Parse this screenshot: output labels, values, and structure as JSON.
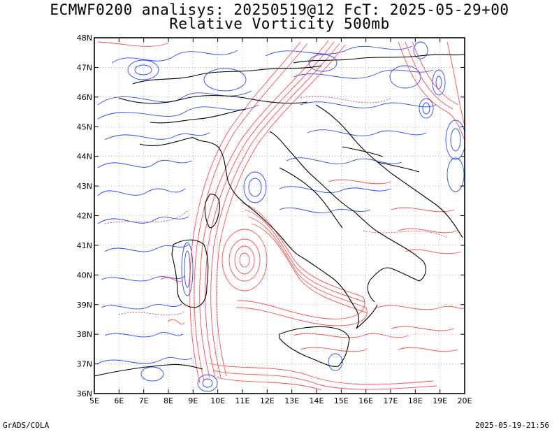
{
  "header": {
    "title_line1": "ECMWF0200 analisys: 20250519@12 FcT: 2025-05-29+00",
    "title_line2": "Relative Vorticity 500mb"
  },
  "map": {
    "lon_range": [
      5,
      20
    ],
    "lat_range": [
      36,
      48
    ],
    "lon_labels": [
      "5E",
      "6E",
      "7E",
      "8E",
      "9E",
      "10E",
      "11E",
      "12E",
      "13E",
      "14E",
      "15E",
      "16E",
      "17E",
      "18E",
      "19E",
      "20E"
    ],
    "lat_labels": [
      "36N",
      "37N",
      "38N",
      "39N",
      "40N",
      "41N",
      "42N",
      "43N",
      "44N",
      "45N",
      "46N",
      "47N",
      "48N"
    ],
    "grid": "dotted",
    "colors": {
      "positive_vorticity": "#ff4040",
      "negative_vorticity": "#2040ff",
      "coastline": "#000000",
      "grid": "#888888"
    }
  },
  "footer": {
    "left": "GrADS/COLA",
    "right": "2025-05-19-21:56"
  }
}
